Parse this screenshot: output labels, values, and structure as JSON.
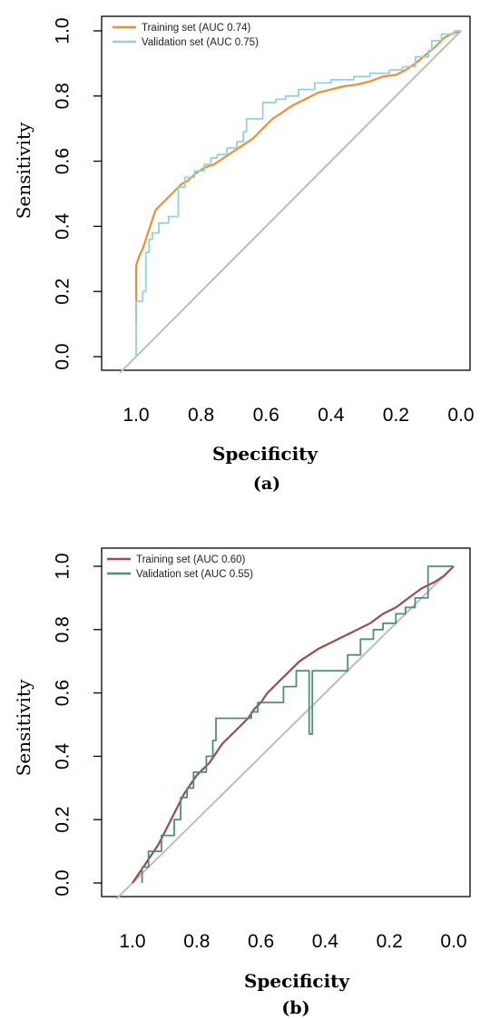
{
  "chart_data": [
    {
      "type": "line",
      "caption": "(a)",
      "title": "",
      "xlabel": "Specificity",
      "ylabel": "Sensitivity",
      "xlim": [
        1.0,
        0.0
      ],
      "ylim": [
        0.0,
        1.0
      ],
      "x_reversed": true,
      "grid": false,
      "legend_position": "top-left",
      "xticks": [
        "1.0",
        "0.8",
        "0.6",
        "0.4",
        "0.2",
        "0.0"
      ],
      "yticks": [
        "0.0",
        "0.2",
        "0.4",
        "0.6",
        "0.8",
        "1.0"
      ],
      "reference_line": {
        "from": [
          1.0,
          0.0
        ],
        "to": [
          0.0,
          1.0
        ],
        "color": "#bdbdbd"
      },
      "series": [
        {
          "name": "Training set (AUC 0.74)",
          "color": "#f28e2b",
          "points": [
            [
              1.0,
              0.1
            ],
            [
              1.0,
              0.28
            ],
            [
              0.99,
              0.31
            ],
            [
              0.98,
              0.33
            ],
            [
              0.97,
              0.36
            ],
            [
              0.96,
              0.39
            ],
            [
              0.95,
              0.42
            ],
            [
              0.94,
              0.45
            ],
            [
              0.92,
              0.47
            ],
            [
              0.9,
              0.49
            ],
            [
              0.88,
              0.51
            ],
            [
              0.86,
              0.53
            ],
            [
              0.84,
              0.54
            ],
            [
              0.82,
              0.56
            ],
            [
              0.79,
              0.58
            ],
            [
              0.76,
              0.59
            ],
            [
              0.73,
              0.61
            ],
            [
              0.7,
              0.63
            ],
            [
              0.67,
              0.65
            ],
            [
              0.64,
              0.67
            ],
            [
              0.61,
              0.7
            ],
            [
              0.58,
              0.73
            ],
            [
              0.55,
              0.75
            ],
            [
              0.52,
              0.77
            ],
            [
              0.48,
              0.79
            ],
            [
              0.44,
              0.81
            ],
            [
              0.4,
              0.82
            ],
            [
              0.36,
              0.83
            ],
            [
              0.32,
              0.835
            ],
            [
              0.28,
              0.845
            ],
            [
              0.24,
              0.86
            ],
            [
              0.2,
              0.865
            ],
            [
              0.17,
              0.88
            ],
            [
              0.14,
              0.9
            ],
            [
              0.11,
              0.925
            ],
            [
              0.08,
              0.95
            ],
            [
              0.05,
              0.98
            ],
            [
              0.03,
              0.99
            ],
            [
              0.0,
              1.0
            ]
          ]
        },
        {
          "name": "Validation set (AUC 0.75)",
          "color": "#8fd3df",
          "points": [
            [
              1.0,
              0.0
            ],
            [
              1.0,
              0.17
            ],
            [
              0.98,
              0.17
            ],
            [
              0.98,
              0.2
            ],
            [
              0.97,
              0.2
            ],
            [
              0.97,
              0.32
            ],
            [
              0.96,
              0.32
            ],
            [
              0.96,
              0.36
            ],
            [
              0.95,
              0.36
            ],
            [
              0.95,
              0.38
            ],
            [
              0.93,
              0.38
            ],
            [
              0.93,
              0.41
            ],
            [
              0.9,
              0.41
            ],
            [
              0.9,
              0.43
            ],
            [
              0.87,
              0.43
            ],
            [
              0.87,
              0.52
            ],
            [
              0.85,
              0.52
            ],
            [
              0.85,
              0.55
            ],
            [
              0.82,
              0.55
            ],
            [
              0.82,
              0.57
            ],
            [
              0.79,
              0.57
            ],
            [
              0.79,
              0.59
            ],
            [
              0.77,
              0.59
            ],
            [
              0.77,
              0.61
            ],
            [
              0.75,
              0.61
            ],
            [
              0.75,
              0.62
            ],
            [
              0.72,
              0.62
            ],
            [
              0.72,
              0.64
            ],
            [
              0.69,
              0.64
            ],
            [
              0.69,
              0.66
            ],
            [
              0.67,
              0.66
            ],
            [
              0.67,
              0.69
            ],
            [
              0.66,
              0.69
            ],
            [
              0.66,
              0.73
            ],
            [
              0.61,
              0.73
            ],
            [
              0.61,
              0.78
            ],
            [
              0.57,
              0.78
            ],
            [
              0.57,
              0.79
            ],
            [
              0.54,
              0.79
            ],
            [
              0.54,
              0.8
            ],
            [
              0.5,
              0.8
            ],
            [
              0.5,
              0.82
            ],
            [
              0.45,
              0.82
            ],
            [
              0.45,
              0.84
            ],
            [
              0.4,
              0.84
            ],
            [
              0.4,
              0.85
            ],
            [
              0.33,
              0.85
            ],
            [
              0.33,
              0.86
            ],
            [
              0.28,
              0.86
            ],
            [
              0.28,
              0.87
            ],
            [
              0.22,
              0.87
            ],
            [
              0.22,
              0.88
            ],
            [
              0.18,
              0.88
            ],
            [
              0.18,
              0.89
            ],
            [
              0.14,
              0.89
            ],
            [
              0.14,
              0.92
            ],
            [
              0.1,
              0.92
            ],
            [
              0.1,
              0.94
            ],
            [
              0.09,
              0.94
            ],
            [
              0.09,
              0.97
            ],
            [
              0.06,
              0.97
            ],
            [
              0.06,
              0.99
            ],
            [
              0.02,
              0.99
            ],
            [
              0.02,
              1.0
            ],
            [
              0.0,
              1.0
            ]
          ]
        }
      ]
    },
    {
      "type": "line",
      "caption": "(b)",
      "title": "",
      "xlabel": "Specificity",
      "ylabel": "Sensitivity",
      "xlim": [
        1.0,
        0.0
      ],
      "ylim": [
        0.0,
        1.0
      ],
      "x_reversed": true,
      "grid": false,
      "legend_position": "top-left",
      "xticks": [
        "1.0",
        "0.8",
        "0.6",
        "0.4",
        "0.2",
        "0.0"
      ],
      "yticks": [
        "0.0",
        "0.2",
        "0.4",
        "0.6",
        "0.8",
        "1.0"
      ],
      "reference_line": {
        "from": [
          1.0,
          0.0
        ],
        "to": [
          0.0,
          1.0
        ],
        "color": "#bdbdbd"
      },
      "series": [
        {
          "name": "Training set (AUC 0.60)",
          "color": "#9c4a4a",
          "points": [
            [
              1.0,
              0.0
            ],
            [
              0.98,
              0.03
            ],
            [
              0.96,
              0.06
            ],
            [
              0.94,
              0.09
            ],
            [
              0.92,
              0.12
            ],
            [
              0.9,
              0.16
            ],
            [
              0.88,
              0.2
            ],
            [
              0.86,
              0.24
            ],
            [
              0.84,
              0.28
            ],
            [
              0.82,
              0.31
            ],
            [
              0.8,
              0.34
            ],
            [
              0.78,
              0.36
            ],
            [
              0.76,
              0.38
            ],
            [
              0.74,
              0.41
            ],
            [
              0.72,
              0.44
            ],
            [
              0.7,
              0.46
            ],
            [
              0.68,
              0.48
            ],
            [
              0.66,
              0.5
            ],
            [
              0.64,
              0.52
            ],
            [
              0.62,
              0.55
            ],
            [
              0.6,
              0.57
            ],
            [
              0.58,
              0.6
            ],
            [
              0.56,
              0.62
            ],
            [
              0.54,
              0.64
            ],
            [
              0.52,
              0.66
            ],
            [
              0.5,
              0.68
            ],
            [
              0.48,
              0.7
            ],
            [
              0.45,
              0.72
            ],
            [
              0.42,
              0.74
            ],
            [
              0.38,
              0.76
            ],
            [
              0.34,
              0.78
            ],
            [
              0.3,
              0.8
            ],
            [
              0.26,
              0.82
            ],
            [
              0.22,
              0.85
            ],
            [
              0.18,
              0.87
            ],
            [
              0.14,
              0.9
            ],
            [
              0.1,
              0.93
            ],
            [
              0.06,
              0.95
            ],
            [
              0.03,
              0.97
            ],
            [
              0.0,
              1.0
            ]
          ]
        },
        {
          "name": "Validation set (AUC 0.55)",
          "color": "#4f8f72",
          "points": [
            [
              0.97,
              0.0
            ],
            [
              0.97,
              0.05
            ],
            [
              0.95,
              0.05
            ],
            [
              0.95,
              0.1
            ],
            [
              0.91,
              0.1
            ],
            [
              0.91,
              0.15
            ],
            [
              0.87,
              0.15
            ],
            [
              0.87,
              0.2
            ],
            [
              0.85,
              0.2
            ],
            [
              0.85,
              0.27
            ],
            [
              0.83,
              0.27
            ],
            [
              0.83,
              0.3
            ],
            [
              0.81,
              0.3
            ],
            [
              0.81,
              0.35
            ],
            [
              0.77,
              0.35
            ],
            [
              0.77,
              0.4
            ],
            [
              0.75,
              0.4
            ],
            [
              0.75,
              0.45
            ],
            [
              0.74,
              0.45
            ],
            [
              0.74,
              0.52
            ],
            [
              0.7,
              0.52
            ],
            [
              0.7,
              0.52
            ],
            [
              0.63,
              0.52
            ],
            [
              0.63,
              0.54
            ],
            [
              0.61,
              0.54
            ],
            [
              0.61,
              0.57
            ],
            [
              0.53,
              0.57
            ],
            [
              0.53,
              0.62
            ],
            [
              0.49,
              0.62
            ],
            [
              0.49,
              0.67
            ],
            [
              0.45,
              0.67
            ],
            [
              0.45,
              0.47
            ],
            [
              0.44,
              0.47
            ],
            [
              0.44,
              0.67
            ],
            [
              0.33,
              0.67
            ],
            [
              0.33,
              0.72
            ],
            [
              0.29,
              0.72
            ],
            [
              0.29,
              0.77
            ],
            [
              0.25,
              0.77
            ],
            [
              0.25,
              0.8
            ],
            [
              0.22,
              0.8
            ],
            [
              0.22,
              0.82
            ],
            [
              0.18,
              0.82
            ],
            [
              0.18,
              0.85
            ],
            [
              0.15,
              0.85
            ],
            [
              0.15,
              0.87
            ],
            [
              0.12,
              0.87
            ],
            [
              0.12,
              0.9
            ],
            [
              0.08,
              0.9
            ],
            [
              0.08,
              1.0
            ],
            [
              0.0,
              1.0
            ]
          ]
        }
      ]
    }
  ]
}
